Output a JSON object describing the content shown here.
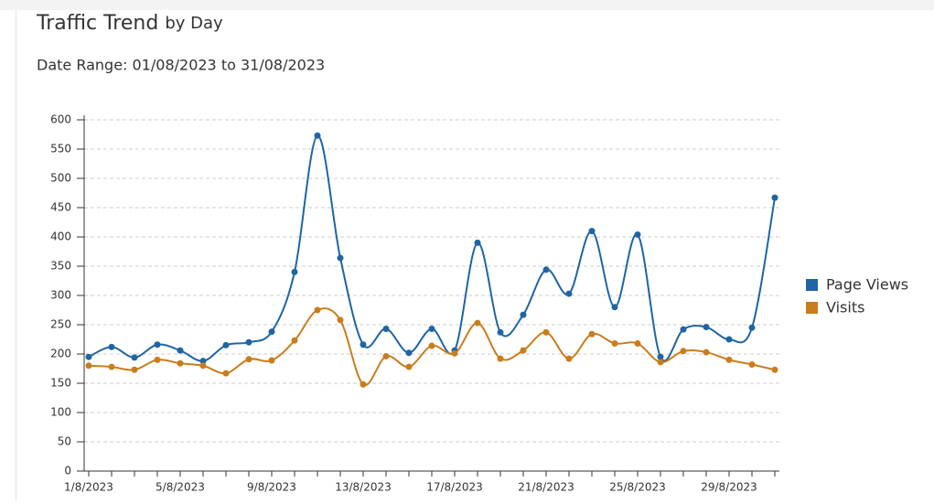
{
  "chart_data": {
    "type": "line",
    "title": "Traffic Trend",
    "title_qualifier": "by Day",
    "subtitle": "Date Range: 01/08/2023 to 31/08/2023",
    "categories": [
      "1/8/2023",
      null,
      null,
      null,
      "5/8/2023",
      null,
      null,
      null,
      "9/8/2023",
      null,
      null,
      null,
      "13/8/2023",
      null,
      null,
      null,
      "17/8/2023",
      null,
      null,
      null,
      "21/8/2023",
      null,
      null,
      null,
      "25/8/2023",
      null,
      null,
      null,
      "29/8/2023",
      null,
      null
    ],
    "series": [
      {
        "name": "Page Views",
        "color": "#1f65a3",
        "values": [
          195,
          212,
          194,
          216,
          206,
          188,
          215,
          220,
          238,
          340,
          573,
          364,
          216,
          243,
          202,
          243,
          206,
          390,
          237,
          267,
          344,
          303,
          410,
          280,
          404,
          195,
          242,
          246,
          225,
          245,
          467
        ]
      },
      {
        "name": "Visits",
        "color": "#c97d1d",
        "values": [
          180,
          178,
          173,
          190,
          184,
          180,
          167,
          191,
          189,
          223,
          275,
          258,
          148,
          196,
          178,
          214,
          201,
          253,
          192,
          206,
          237,
          192,
          234,
          218,
          218,
          186,
          205,
          203,
          190,
          182,
          173
        ]
      }
    ],
    "ylim": [
      0,
      600
    ],
    "yticks": [
      0,
      50,
      100,
      150,
      200,
      250,
      300,
      350,
      400,
      450,
      500,
      550,
      600
    ],
    "grid": true,
    "legend": "right"
  }
}
